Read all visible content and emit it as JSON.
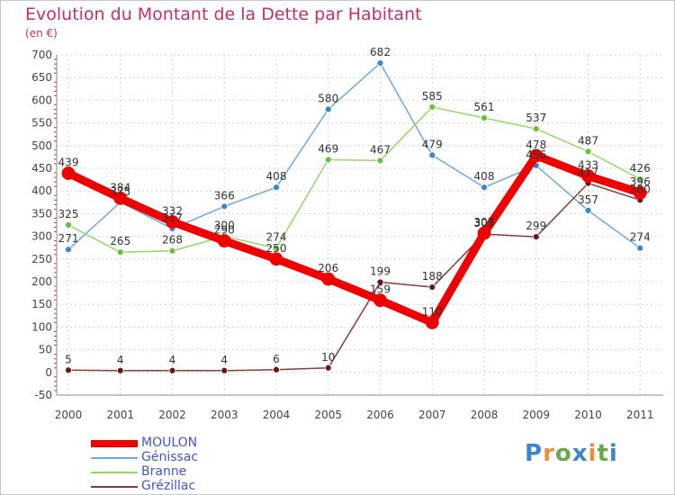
{
  "chart_data": {
    "type": "line",
    "title": "Evolution du Montant de la Dette par Habitant",
    "unit_label": "(en €)",
    "x": [
      "2000",
      "2001",
      "2002",
      "2003",
      "2004",
      "2005",
      "2006",
      "2007",
      "2008",
      "2009",
      "2010",
      "2011"
    ],
    "ylim": [
      -50,
      700
    ],
    "yticks": [
      -50,
      0,
      50,
      100,
      150,
      200,
      250,
      300,
      350,
      400,
      450,
      500,
      550,
      600,
      650,
      700
    ],
    "grid": true,
    "legend_position": "bottom-left",
    "series": [
      {
        "name": "MOULON",
        "color": "#ee0000",
        "marker_color": "#ee0000",
        "emphasis": true,
        "values": [
          439,
          384,
          332,
          290,
          250,
          206,
          159,
          110,
          307,
          478,
          433,
          396
        ]
      },
      {
        "name": "Génissac",
        "color": "#6fa8dc",
        "marker_color": "#3d85c6",
        "values": [
          271,
          375,
          317,
          366,
          408,
          580,
          682,
          479,
          408,
          456,
          357,
          274
        ]
      },
      {
        "name": "Branne",
        "color": "#93d86a",
        "marker_color": "#6abf3a",
        "values": [
          325,
          265,
          268,
          300,
          274,
          469,
          467,
          585,
          561,
          537,
          487,
          426
        ]
      },
      {
        "name": "Grézillac",
        "color": "#8b3a3a",
        "marker_color": "#6b1515",
        "values": [
          5,
          4,
          4,
          4,
          6,
          10,
          199,
          188,
          305,
          299,
          417,
          380
        ]
      }
    ]
  },
  "brand": {
    "letters": [
      "P",
      "r",
      "o",
      "x",
      "i",
      "t",
      "i"
    ],
    "colors": [
      "#3d85c6",
      "#e69138",
      "#6aa84f",
      "#3d85c6",
      "#e69138",
      "#6aa84f",
      "#3d85c6"
    ]
  }
}
